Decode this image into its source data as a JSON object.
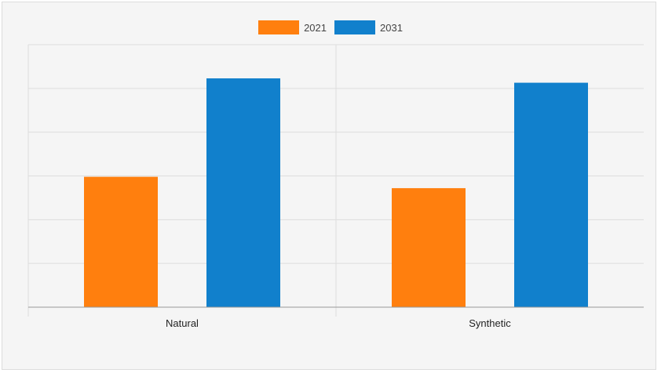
{
  "colors": {
    "series_2021": "#ff7f0e",
    "series_2031": "#1180cc",
    "background": "#f5f5f5",
    "grid": "#dddddd",
    "axis": "#999999"
  },
  "chart_data": {
    "type": "bar",
    "title": "",
    "xlabel": "",
    "ylabel": "",
    "categories": [
      "Natural",
      "Synthetic"
    ],
    "series": [
      {
        "name": "2021",
        "values": [
          2.98,
          2.72
        ]
      },
      {
        "name": "2031",
        "values": [
          5.23,
          5.13
        ]
      }
    ],
    "ylim": [
      0,
      6
    ],
    "grid": true,
    "legend_position": "top-center",
    "y_tick_labels_shown": false
  }
}
